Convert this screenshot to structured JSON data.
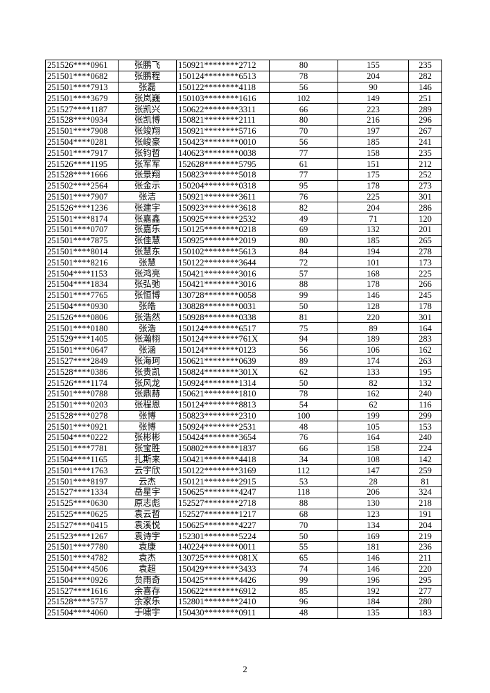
{
  "rows": [
    [
      "251526****0961",
      "张鹏飞",
      "150921********2712",
      "80",
      "155",
      "235"
    ],
    [
      "251501****0682",
      "张鹏程",
      "150124********6513",
      "78",
      "204",
      "282"
    ],
    [
      "251501****7913",
      "张磊",
      "150122********4118",
      "56",
      "90",
      "146"
    ],
    [
      "251501****3679",
      "张岚巍",
      "150103********1616",
      "102",
      "149",
      "251"
    ],
    [
      "251527****1187",
      "张凯兴",
      "150622********3311",
      "66",
      "223",
      "289"
    ],
    [
      "251528****0934",
      "张凯博",
      "150821********2111",
      "80",
      "216",
      "296"
    ],
    [
      "251501****7908",
      "张竣翔",
      "150921********5716",
      "70",
      "197",
      "267"
    ],
    [
      "251504****0281",
      "张峻豪",
      "150423********0010",
      "56",
      "185",
      "241"
    ],
    [
      "251501****7917",
      "张钧哲",
      "140623********0038",
      "77",
      "158",
      "235"
    ],
    [
      "251526****1195",
      "张军军",
      "152628********5795",
      "61",
      "151",
      "212"
    ],
    [
      "251528****1666",
      "张景翔",
      "150823********5018",
      "77",
      "175",
      "252"
    ],
    [
      "251502****2564",
      "张金示",
      "150204********0318",
      "95",
      "178",
      "273"
    ],
    [
      "251501****7907",
      "张洁",
      "150921********3611",
      "76",
      "225",
      "301"
    ],
    [
      "251526****1236",
      "张建宇",
      "150923********3618",
      "82",
      "204",
      "286"
    ],
    [
      "251501****8174",
      "张嘉鑫",
      "150925********2532",
      "49",
      "71",
      "120"
    ],
    [
      "251501****0707",
      "张嘉乐",
      "150125********0218",
      "69",
      "132",
      "201"
    ],
    [
      "251501****7875",
      "张佳慧",
      "150925********2019",
      "80",
      "185",
      "265"
    ],
    [
      "251501****8014",
      "张慧东",
      "150102********5613",
      "84",
      "194",
      "278"
    ],
    [
      "251501****8216",
      "张慧",
      "150122********3644",
      "72",
      "101",
      "173"
    ],
    [
      "251504****1153",
      "张鸿亮",
      "150421********3016",
      "57",
      "168",
      "225"
    ],
    [
      "251504****1834",
      "张弘弛",
      "150421********3016",
      "88",
      "178",
      "266"
    ],
    [
      "251501****7765",
      "张恒博",
      "130728********0058",
      "99",
      "146",
      "245"
    ],
    [
      "251504****0930",
      "张皓",
      "130828********0031",
      "50",
      "128",
      "178"
    ],
    [
      "251526****0806",
      "张浩然",
      "150928********0338",
      "81",
      "220",
      "301"
    ],
    [
      "251501****0180",
      "张浩",
      "150124********6517",
      "75",
      "89",
      "164"
    ],
    [
      "251529****1405",
      "张瀚栩",
      "150124********761X",
      "94",
      "189",
      "283"
    ],
    [
      "251501****0647",
      "张涵",
      "150124********0123",
      "56",
      "106",
      "162"
    ],
    [
      "251527****2849",
      "张海珂",
      "150621********0639",
      "89",
      "174",
      "263"
    ],
    [
      "251528****0386",
      "张贵凯",
      "150824********301X",
      "62",
      "133",
      "195"
    ],
    [
      "251526****1174",
      "张风龙",
      "150924********1314",
      "50",
      "82",
      "132"
    ],
    [
      "251501****0788",
      "张鼎赫",
      "150621********1810",
      "78",
      "162",
      "240"
    ],
    [
      "251501****0203",
      "张程恩",
      "150124********8813",
      "54",
      "62",
      "116"
    ],
    [
      "251528****0278",
      "张博",
      "150823********2310",
      "100",
      "199",
      "299"
    ],
    [
      "251501****0921",
      "张博",
      "150924********2531",
      "48",
      "105",
      "153"
    ],
    [
      "251504****0222",
      "张彬彬",
      "150424********3654",
      "76",
      "164",
      "240"
    ],
    [
      "251501****7781",
      "张宝胜",
      "150802********1837",
      "66",
      "158",
      "224"
    ],
    [
      "251504****1165",
      "扎斯来",
      "150421********4418",
      "34",
      "108",
      "142"
    ],
    [
      "251501****1763",
      "云宇欣",
      "150122********3169",
      "112",
      "147",
      "259"
    ],
    [
      "251501****8197",
      "云杰",
      "150121********2915",
      "53",
      "28",
      "81"
    ],
    [
      "251527****1334",
      "岳星宇",
      "150625********4247",
      "118",
      "206",
      "324"
    ],
    [
      "251525****0630",
      "原志彪",
      "152527********2718",
      "88",
      "130",
      "218"
    ],
    [
      "251525****0625",
      "袁云哲",
      "152527********1217",
      "68",
      "123",
      "191"
    ],
    [
      "251527****0415",
      "袁溪悦",
      "150625********4227",
      "70",
      "134",
      "204"
    ],
    [
      "251523****1267",
      "袁诗宇",
      "152301********5224",
      "50",
      "169",
      "219"
    ],
    [
      "251501****7780",
      "袁康",
      "140224********0011",
      "55",
      "181",
      "236"
    ],
    [
      "251501****4782",
      "袁杰",
      "130725********081X",
      "65",
      "146",
      "211"
    ],
    [
      "251504****4506",
      "袁超",
      "150429********3433",
      "74",
      "146",
      "220"
    ],
    [
      "251504****0926",
      "贠雨奇",
      "150425********4426",
      "99",
      "196",
      "295"
    ],
    [
      "251527****1616",
      "余喜存",
      "150622********6912",
      "85",
      "192",
      "277"
    ],
    [
      "251528****5757",
      "余家乐",
      "152801********2410",
      "96",
      "184",
      "280"
    ],
    [
      "251504****4060",
      "于啸宇",
      "150430********0911",
      "48",
      "135",
      "183"
    ]
  ],
  "page_number": "2"
}
